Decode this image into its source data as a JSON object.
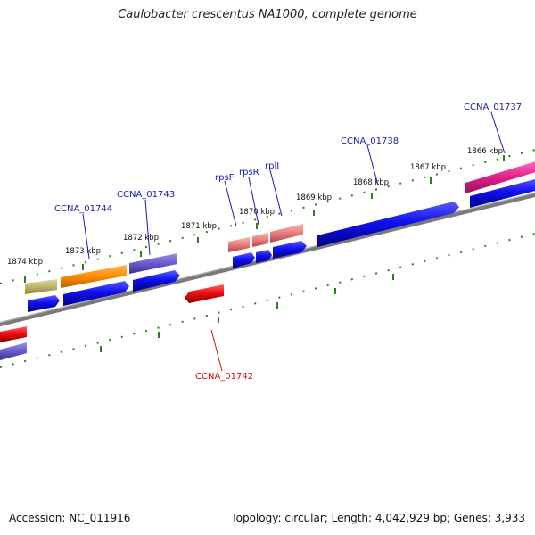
{
  "title": "Caulobacter crescentus NA1000, complete genome",
  "footer": {
    "accession": "Accession: NC_011916",
    "summary": "Topology: circular; Length: 4,042,929 bp; Genes: 3,933"
  },
  "ticks": [
    {
      "label": "1866 kbp"
    },
    {
      "label": "1867 kbp"
    },
    {
      "label": "1868 kbp"
    },
    {
      "label": "1869 kbp"
    },
    {
      "label": "1870 kbp"
    },
    {
      "label": "1871 kbp"
    },
    {
      "label": "1872 kbp"
    },
    {
      "label": "1873 kbp"
    },
    {
      "label": "1874 kbp"
    }
  ],
  "gene_labels": [
    {
      "name": "CCNA_01737",
      "color": "#1a1aaa"
    },
    {
      "name": "CCNA_01738",
      "color": "#1a1aaa"
    },
    {
      "name": "rplI",
      "color": "#1a1aaa"
    },
    {
      "name": "rpsR",
      "color": "#1a1aaa"
    },
    {
      "name": "rpsF",
      "color": "#1a1aaa"
    },
    {
      "name": "CCNA_01743",
      "color": "#1a1aaa"
    },
    {
      "name": "CCNA_01744",
      "color": "#1a1aaa"
    },
    {
      "name": "CCNA_01742",
      "color": "#cc1111"
    }
  ],
  "colors": {
    "backbone": "#7a7a7a",
    "tick": "#2e7d1e",
    "gene_forward": "#1010ee",
    "gene_reverse": "#ee1010",
    "cog_orange": "#ff8c00",
    "cog_purple": "#6a5acd",
    "cog_olive": "#bdb76b",
    "cog_salmon": "#e87c7c",
    "cog_magenta": "#e0208a"
  }
}
